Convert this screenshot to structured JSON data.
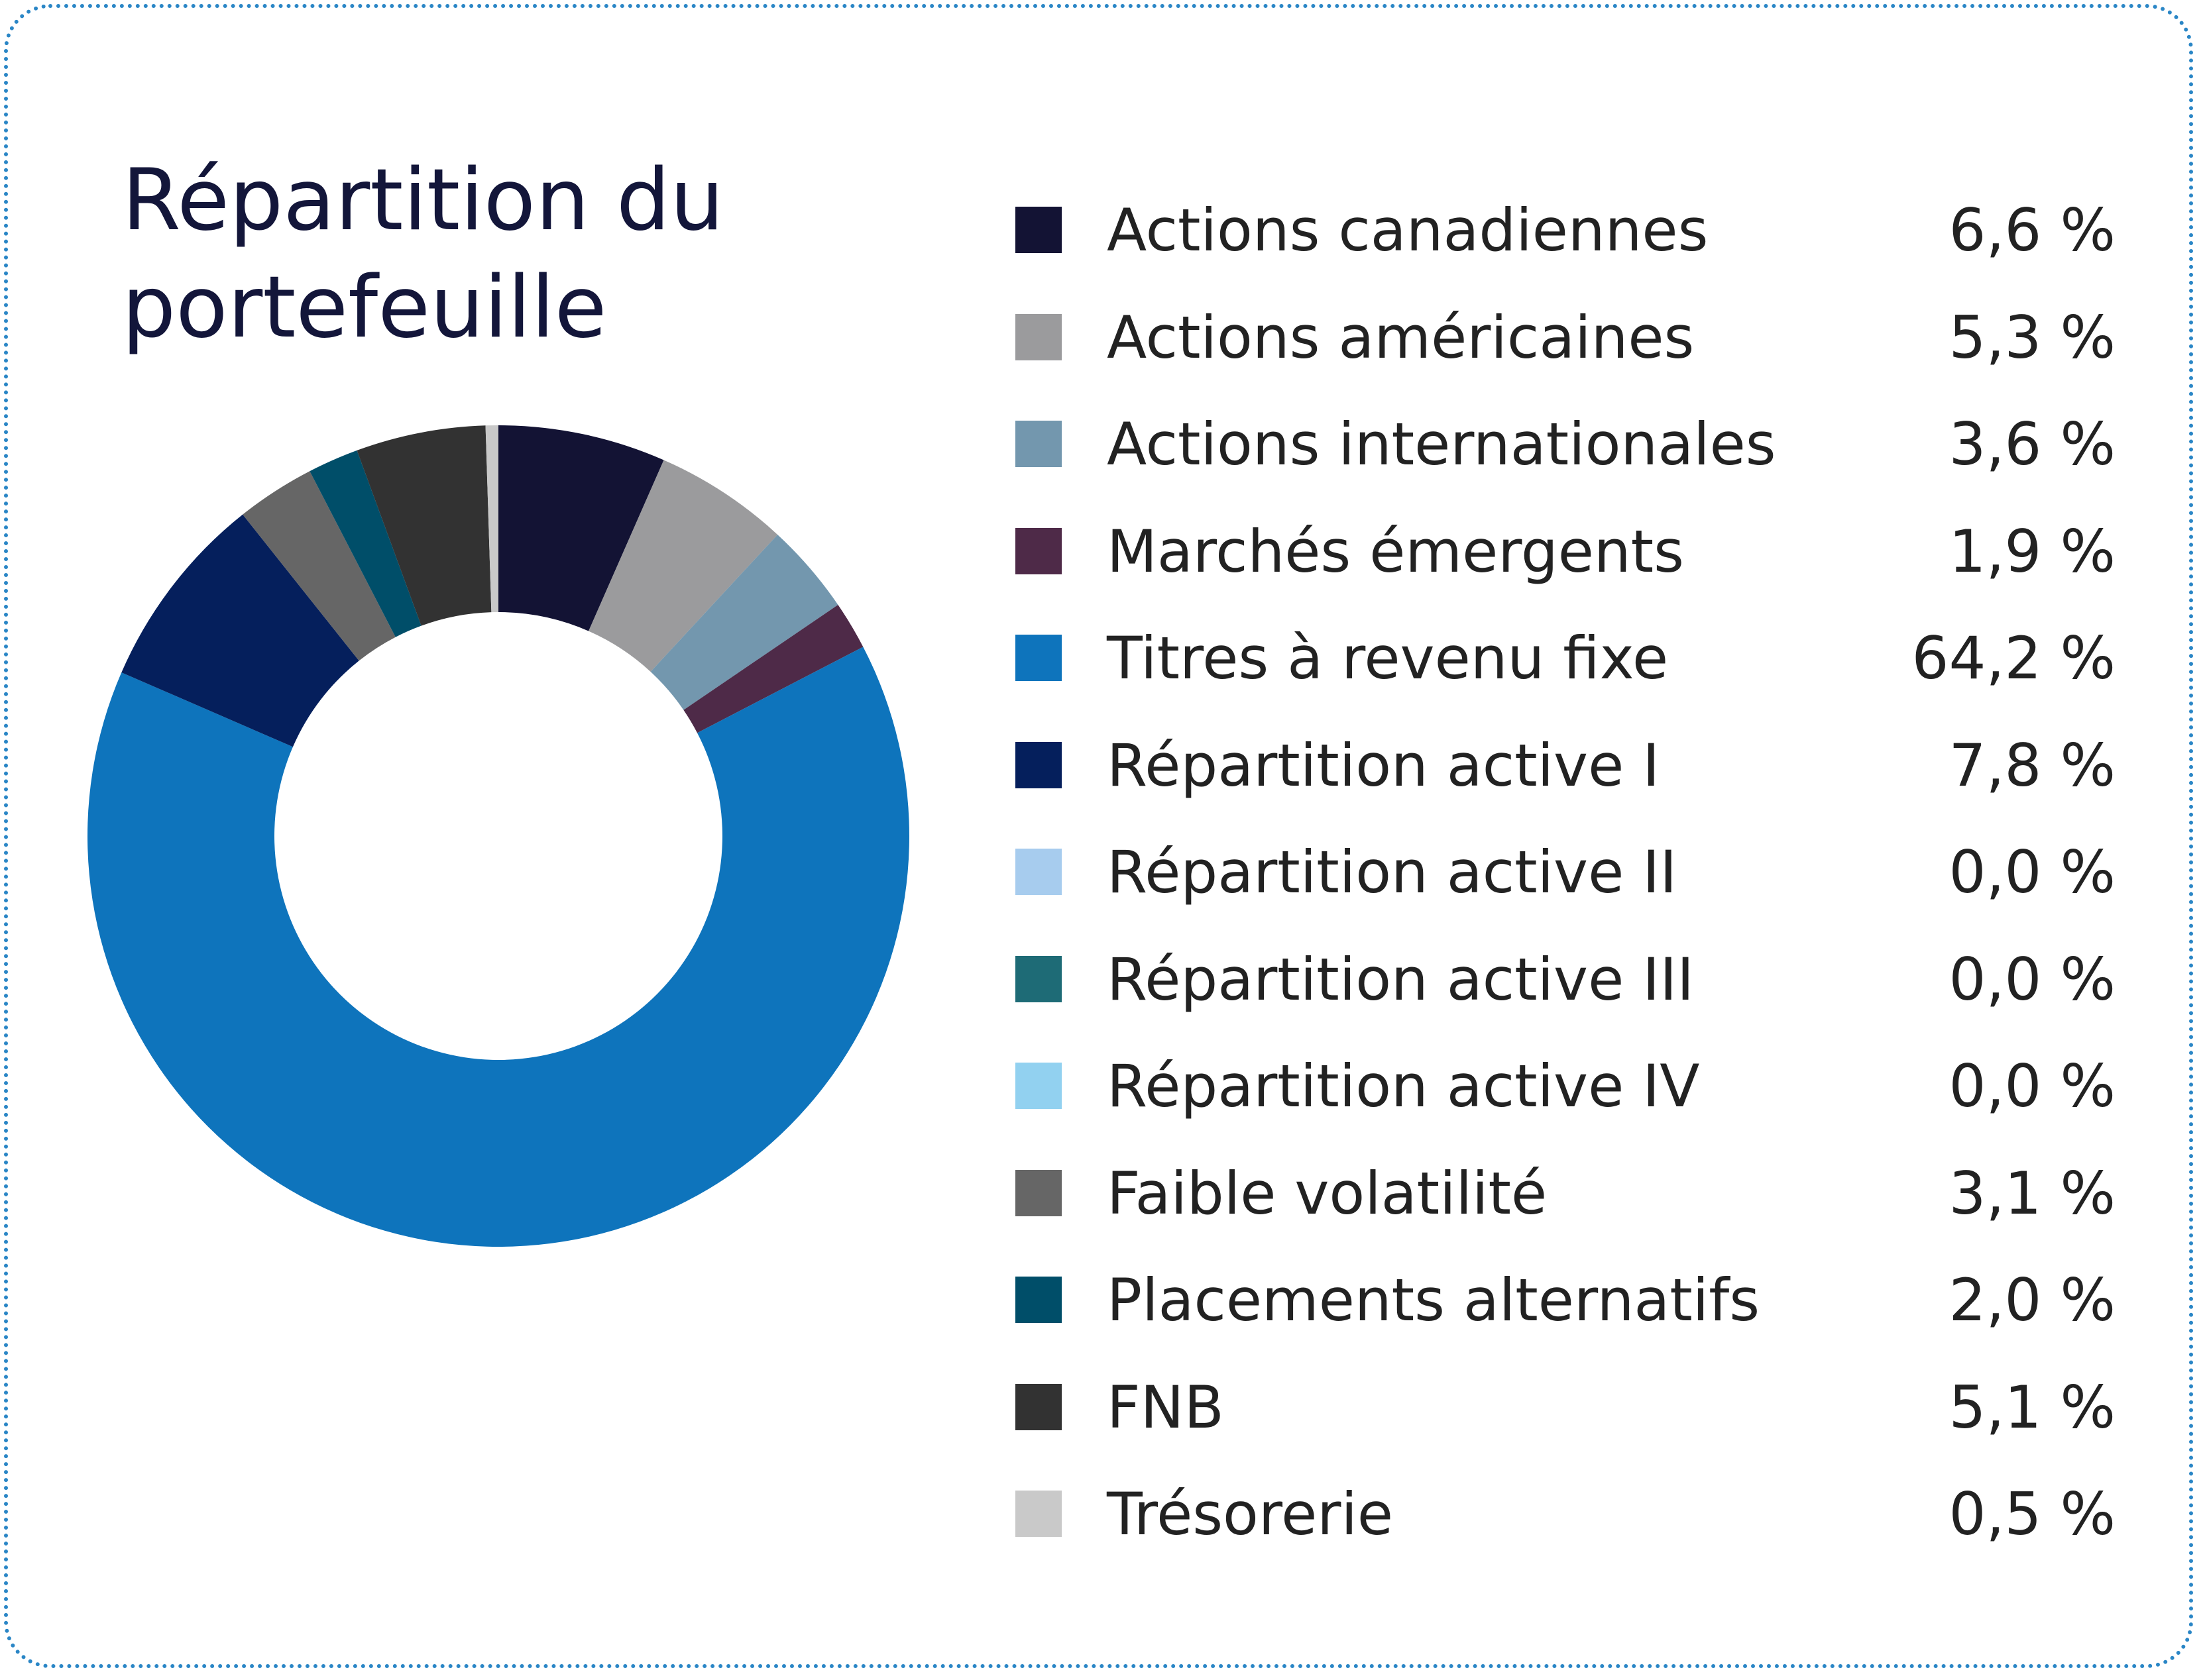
{
  "chart_data": {
    "type": "pie",
    "title": "Répartition du portefeuille",
    "series": [
      {
        "label": "Actions canadiennes",
        "value": 6.6,
        "display": "6,6 %",
        "color": "#131334"
      },
      {
        "label": "Actions américaines",
        "value": 5.3,
        "display": "5,3 %",
        "color": "#9b9b9d"
      },
      {
        "label": "Actions internationales",
        "value": 3.6,
        "display": "3,6 %",
        "color": "#7397ae"
      },
      {
        "label": "Marchés émergents",
        "value": 1.9,
        "display": "1,9 %",
        "color": "#4e2a48"
      },
      {
        "label": "Titres à revenu fixe",
        "value": 64.2,
        "display": "64,2 %",
        "color": "#0e74bc"
      },
      {
        "label": "Répartition active I",
        "value": 7.8,
        "display": "7,8 %",
        "color": "#051f5c"
      },
      {
        "label": "Répartition active II",
        "value": 0.0,
        "display": "0,0 %",
        "color": "#a7ccee"
      },
      {
        "label": "Répartition active III",
        "value": 0.0,
        "display": "0,0 %",
        "color": "#1e6b76"
      },
      {
        "label": "Répartition active IV",
        "value": 0.0,
        "display": "0,0 %",
        "color": "#92d1f0"
      },
      {
        "label": "Faible volatilité",
        "value": 3.1,
        "display": "3,1 %",
        "color": "#666666"
      },
      {
        "label": "Placements alternatifs",
        "value": 2.0,
        "display": "2,0 %",
        "color": "#004e69"
      },
      {
        "label": "FNB",
        "value": 5.1,
        "display": "5,1 %",
        "color": "#323232"
      },
      {
        "label": "Trésorerie",
        "value": 0.5,
        "display": "0,5 %",
        "color": "#c9c9c9"
      }
    ],
    "legend": "right",
    "donut": true
  }
}
